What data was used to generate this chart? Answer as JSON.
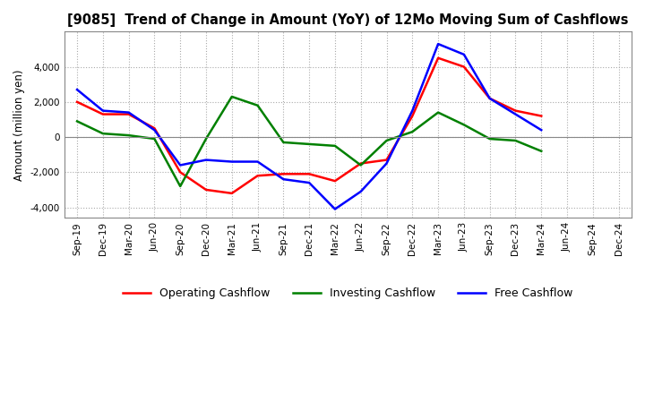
{
  "title": "[9085]  Trend of Change in Amount (YoY) of 12Mo Moving Sum of Cashflows",
  "ylabel": "Amount (million yen)",
  "background_color": "#ffffff",
  "grid_color": "#aaaaaa",
  "xlabels": [
    "Sep-19",
    "Dec-19",
    "Mar-20",
    "Jun-20",
    "Sep-20",
    "Dec-20",
    "Mar-21",
    "Jun-21",
    "Sep-21",
    "Dec-21",
    "Mar-22",
    "Jun-22",
    "Sep-22",
    "Dec-22",
    "Mar-23",
    "Jun-23",
    "Sep-23",
    "Dec-23",
    "Mar-24",
    "Jun-24",
    "Sep-24",
    "Dec-24"
  ],
  "operating": [
    2000,
    1300,
    1300,
    500,
    -2000,
    -3000,
    -3200,
    -2200,
    -2100,
    -2100,
    -2500,
    -1500,
    -1300,
    1200,
    4500,
    4000,
    2200,
    1500,
    1200,
    null,
    null,
    null
  ],
  "investing": [
    900,
    200,
    100,
    -100,
    -2800,
    -100,
    2300,
    1800,
    -300,
    -400,
    -500,
    -1600,
    -200,
    300,
    1400,
    700,
    -100,
    -200,
    -800,
    null,
    null,
    null
  ],
  "free": [
    2700,
    1500,
    1400,
    400,
    -1600,
    -1300,
    -1400,
    -1400,
    -2400,
    -2600,
    -4100,
    -3100,
    -1500,
    1500,
    5300,
    4700,
    2200,
    1300,
    400,
    null,
    null,
    null
  ],
  "ylim": [
    -4600,
    6000
  ],
  "yticks": [
    -4000,
    -2000,
    0,
    2000,
    4000
  ],
  "operating_color": "#ff0000",
  "investing_color": "#008000",
  "free_color": "#0000ff",
  "line_width": 1.8
}
